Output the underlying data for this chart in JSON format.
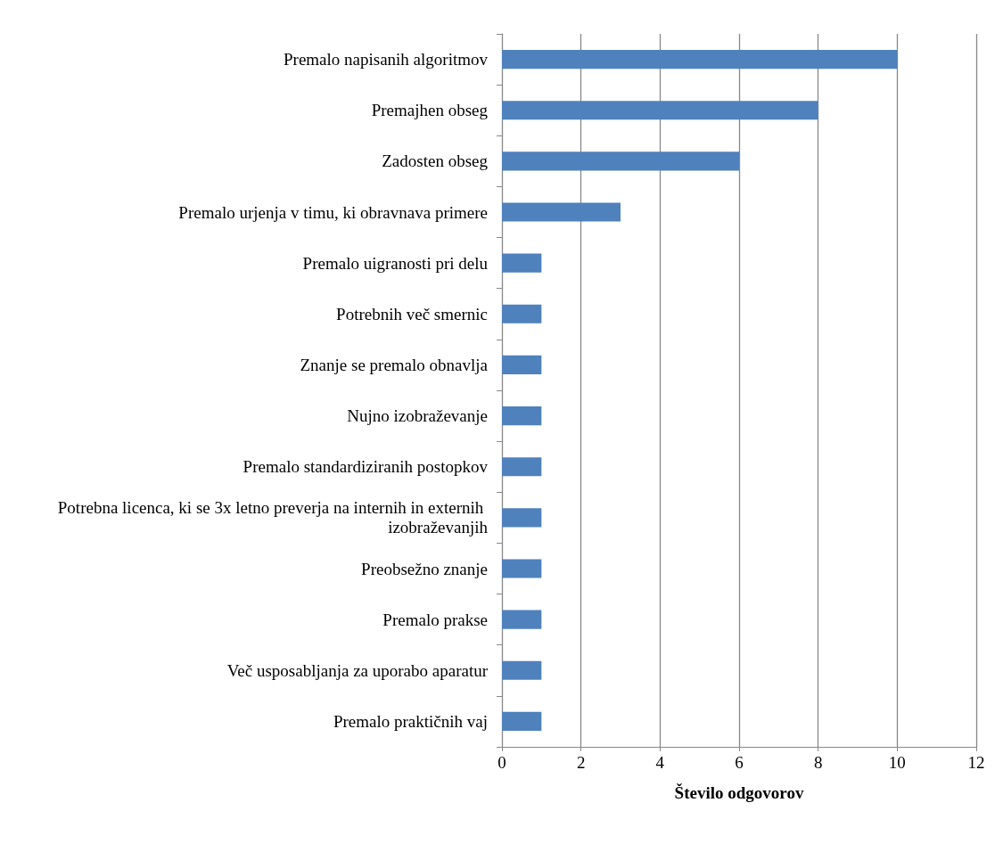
{
  "chart_data": {
    "type": "bar",
    "orientation": "horizontal",
    "xlabel": "Število odgovorov",
    "categories": [
      "Premalo napisanih algoritmov",
      "Premajhen obseg",
      "Zadosten obseg",
      "Premalo urjenja v timu, ki obravnava primere",
      "Premalo uigranosti pri delu",
      "Potrebnih več smernic",
      "Znanje se premalo obnavlja",
      "Nujno izobraževanje",
      "Premalo standardiziranih postopkov",
      "Potrebna licenca, ki se 3x letno preverja na internih in externih izobraževanjih",
      "Preobsežno znanje",
      "Premalo prakse",
      "Več usposabljanja za uporabo aparatur",
      "Premalo praktičnih vaj"
    ],
    "values": [
      10,
      8,
      6,
      3,
      1,
      1,
      1,
      1,
      1,
      1,
      1,
      1,
      1,
      1
    ],
    "color": "#4f81bd",
    "xlim": [
      0,
      12
    ],
    "xticks": [
      0,
      2,
      4,
      6,
      8,
      10,
      12
    ],
    "grid": "x"
  }
}
